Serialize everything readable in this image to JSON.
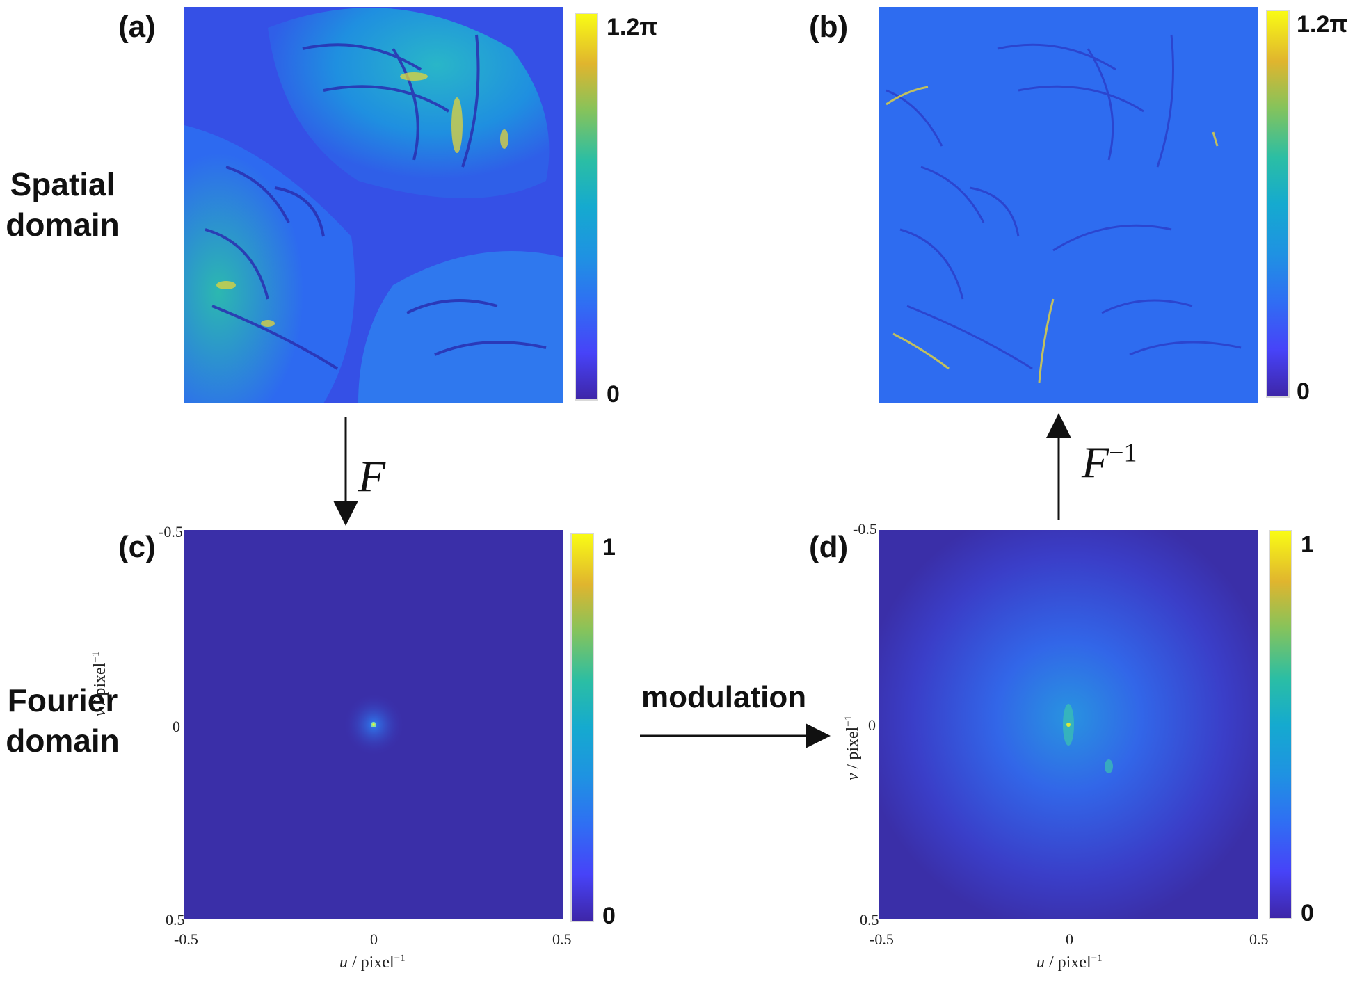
{
  "rows": {
    "spatial_line1": "Spatial",
    "spatial_line2": "domain",
    "fourier_line1": "Fourier",
    "fourier_line2": "domain"
  },
  "panels": {
    "a": {
      "letter": "(a)",
      "cbar_max": "1.2π",
      "cbar_min": "0"
    },
    "b": {
      "letter": "(b)",
      "cbar_max": "1.2π",
      "cbar_min": "0"
    },
    "c": {
      "letter": "(c)",
      "cbar_max": "1",
      "cbar_min": "0"
    },
    "d": {
      "letter": "(d)",
      "cbar_max": "1",
      "cbar_min": "0"
    }
  },
  "axes": {
    "y_ticks": [
      "-0.5",
      "0",
      "0.5"
    ],
    "x_ticks": [
      "-0.5",
      "0",
      "0.5"
    ],
    "xlabel_var": "u",
    "xlabel_unit": " / pixel",
    "xlabel_exp": "−1",
    "ylabel_var": "v",
    "ylabel_unit": " / pixel",
    "ylabel_exp": "−1"
  },
  "operators": {
    "forward": "F",
    "inverse": "F",
    "inverse_exp": "−1",
    "modulation": "modulation"
  },
  "colors": {
    "colormap_low": "#3e26a8",
    "colormap_high": "#f9fb15",
    "arrow": "#111111"
  }
}
